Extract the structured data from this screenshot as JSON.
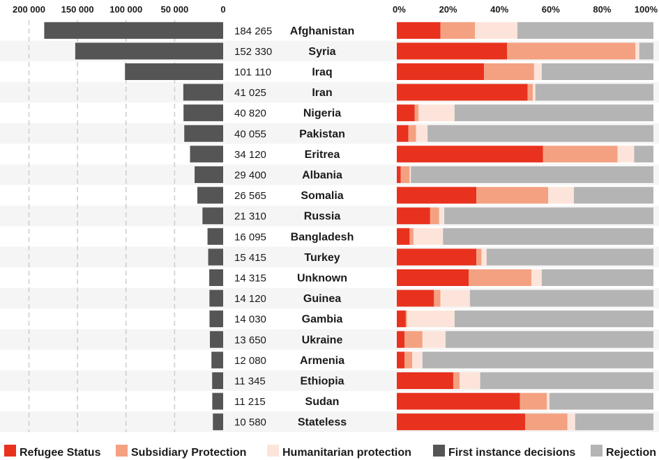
{
  "chart_data": {
    "type": "bar",
    "categories": [
      "Afghanistan",
      "Syria",
      "Iraq",
      "Iran",
      "Nigeria",
      "Pakistan",
      "Eritrea",
      "Albania",
      "Somalia",
      "Russia",
      "Bangladesh",
      "Turkey",
      "Unknown",
      "Guinea",
      "Gambia",
      "Ukraine",
      "Armenia",
      "Ethiopia",
      "Sudan",
      "Stateless"
    ],
    "left_axis": {
      "ticks": [
        200000,
        150000,
        100000,
        50000,
        0
      ],
      "tick_labels": [
        "200 000",
        "150 000",
        "100 000",
        "50 000",
        "0"
      ],
      "xlim": [
        0,
        200000
      ],
      "grid": true
    },
    "right_axis": {
      "ticks": [
        0,
        20,
        40,
        60,
        80,
        100
      ],
      "tick_labels": [
        "0%",
        "20%",
        "40%",
        "60%",
        "80%",
        "100%"
      ],
      "xlim": [
        0,
        100
      ]
    },
    "first_instance_decisions": {
      "name": "First instance decisions",
      "values": [
        184265,
        152330,
        101110,
        41025,
        40820,
        40055,
        34120,
        29400,
        26565,
        21310,
        16095,
        15415,
        14315,
        14120,
        14030,
        13650,
        12080,
        11345,
        11215,
        10580
      ],
      "labels": [
        "184 265",
        "152 330",
        "101 110",
        "41 025",
        "40 820",
        "40 055",
        "34 120",
        "29 400",
        "26 565",
        "21 310",
        "16 095",
        "15 415",
        "14 315",
        "14 120",
        "14 030",
        "13 650",
        "12 080",
        "11 345",
        "11 215",
        "10 580"
      ]
    },
    "series": [
      {
        "name": "Refugee Status",
        "values": [
          17,
          43,
          34,
          51,
          7,
          4.5,
          57,
          1.5,
          31,
          13,
          5,
          31,
          28,
          14.5,
          3.5,
          3,
          3,
          22,
          48,
          50
        ]
      },
      {
        "name": "Subsidiary Protection",
        "values": [
          13.5,
          50,
          19.5,
          2,
          1.5,
          3,
          29,
          3.5,
          28,
          3.5,
          1.5,
          2,
          24.5,
          2.5,
          0.5,
          7,
          3,
          2.5,
          10.5,
          16.5
        ]
      },
      {
        "name": "Humanitarian protection",
        "values": [
          16.5,
          1.5,
          3,
          1,
          14,
          4.5,
          6.5,
          0.5,
          10,
          2,
          11.5,
          2,
          4,
          11.5,
          18.5,
          9,
          4,
          8,
          1,
          3
        ]
      },
      {
        "name": "Rejection",
        "values": [
          53,
          5.5,
          43.5,
          46,
          77.5,
          88,
          7.5,
          94.5,
          31,
          81.5,
          82,
          65,
          43.5,
          71.5,
          77.5,
          81,
          90,
          67.5,
          40.5,
          30.5
        ]
      }
    ],
    "colors": {
      "refugee": "#e8321e",
      "subsidiary": "#f4a182",
      "humanitarian": "#fde4da",
      "first_instance": "#555555",
      "rejection": "#b4b4b4",
      "stripe": "#f5f5f5",
      "grid": "#cccccc"
    },
    "legend": {
      "position": "bottom",
      "items": [
        {
          "label": "Refugee Status",
          "color": "#e8321e"
        },
        {
          "label": "Subsidiary Protection",
          "color": "#f4a182"
        },
        {
          "label": "Humanitarian protection",
          "color": "#fde4da"
        },
        {
          "label": "First instance decisions",
          "color": "#555555"
        },
        {
          "label": "Rejection",
          "color": "#b4b4b4"
        }
      ]
    }
  }
}
